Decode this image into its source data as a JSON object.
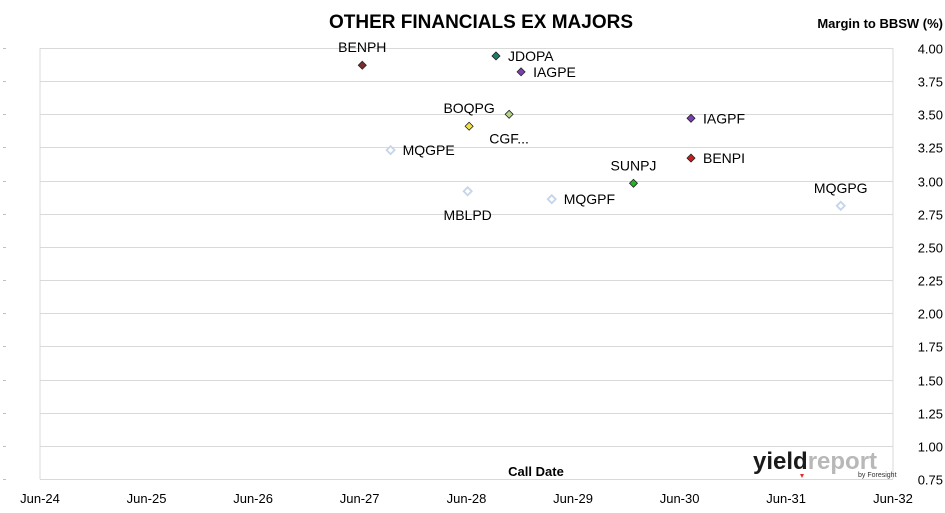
{
  "chart_data": {
    "type": "scatter",
    "title": "OTHER FINANCIALS EX MAJORS",
    "ylabel": "Margin to BBSW (%)",
    "xlabel": "Call Date",
    "x_ticks": [
      "Jun-24",
      "Jun-25",
      "Jun-26",
      "Jun-27",
      "Jun-28",
      "Jun-29",
      "Jun-30",
      "Jun-31",
      "Jun-32"
    ],
    "y_ticks": [
      "0.75",
      "1.00",
      "1.25",
      "1.50",
      "1.75",
      "2.00",
      "2.25",
      "2.50",
      "2.75",
      "3.00",
      "3.25",
      "3.50",
      "3.75",
      "4.00"
    ],
    "xlim": [
      "Jun-24",
      "Jun-32"
    ],
    "ylim": [
      0.75,
      4.0
    ],
    "grid": "horizontal",
    "points": [
      {
        "label": "BENPH",
        "x": "2027-06-10",
        "y": 3.87,
        "color": "#7b2c2c",
        "filled": true,
        "label_pos": "above"
      },
      {
        "label": "JDOPA",
        "x": "2028-09-10",
        "y": 3.94,
        "color": "#1f7a6a",
        "filled": true,
        "label_pos": "right"
      },
      {
        "label": "IAGPE",
        "x": "2028-12-05",
        "y": 3.82,
        "color": "#7a3fb0",
        "filled": true,
        "label_pos": "right"
      },
      {
        "label": "BOQPG",
        "x": "2028-06-10",
        "y": 3.41,
        "color": "#f2e24a",
        "filled": true,
        "label_pos": "above"
      },
      {
        "label": "CGF...",
        "x": "2028-10-25",
        "y": 3.5,
        "color": "#b5d48a",
        "filled": true,
        "label_pos": "below"
      },
      {
        "label": "MQGPE",
        "x": "2027-09-15",
        "y": 3.23,
        "color": "#c5d5ea",
        "filled": false,
        "label_pos": "right"
      },
      {
        "label": "MBLPD",
        "x": "2028-06-05",
        "y": 2.92,
        "color": "#c5d5ea",
        "filled": false,
        "label_pos": "below"
      },
      {
        "label": "MQGPF",
        "x": "2029-03-20",
        "y": 2.86,
        "color": "#c5d5ea",
        "filled": false,
        "label_pos": "right"
      },
      {
        "label": "SUNPJ",
        "x": "2029-12-25",
        "y": 2.98,
        "color": "#22b422",
        "filled": true,
        "label_pos": "above"
      },
      {
        "label": "IAGPF",
        "x": "2030-07-10",
        "y": 3.47,
        "color": "#7a3fb0",
        "filled": true,
        "label_pos": "right"
      },
      {
        "label": "BENPI",
        "x": "2030-07-10",
        "y": 3.17,
        "color": "#c42020",
        "filled": true,
        "label_pos": "right"
      },
      {
        "label": "MQGPG",
        "x": "2031-12-05",
        "y": 2.81,
        "color": "#c5d5ea",
        "filled": false,
        "label_pos": "above"
      }
    ]
  },
  "logo": {
    "main": "yieldreport",
    "sub": "by Foresight"
  }
}
